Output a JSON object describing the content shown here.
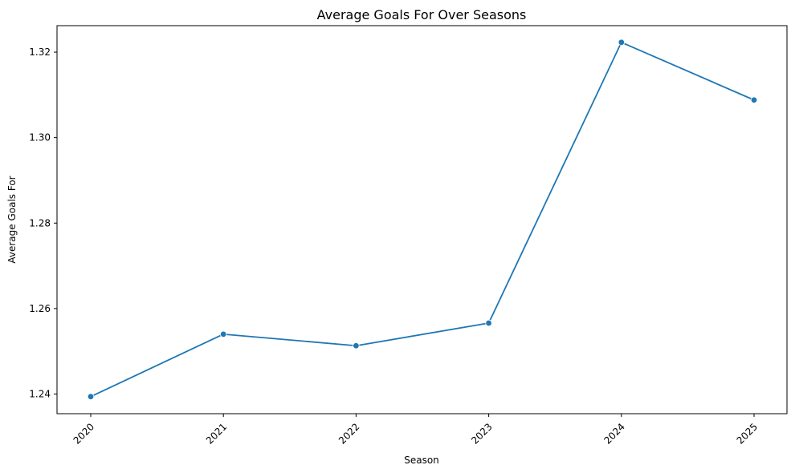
{
  "chart_data": {
    "type": "line",
    "title": "Average Goals For Over Seasons",
    "xlabel": "Season",
    "ylabel": "Average Goals For",
    "categories": [
      "2020",
      "2021",
      "2022",
      "2023",
      "2024",
      "2025"
    ],
    "series": [
      {
        "values": [
          1.2394,
          1.254,
          1.2513,
          1.2566,
          1.3223,
          1.3088
        ],
        "color": "#1f77b4",
        "marker": "circle"
      }
    ],
    "ylim": [
      1.2354,
      1.3262
    ],
    "yticks": [
      "1.24",
      "1.26",
      "1.28",
      "1.30",
      "1.32"
    ],
    "grid": false,
    "legend": false
  }
}
